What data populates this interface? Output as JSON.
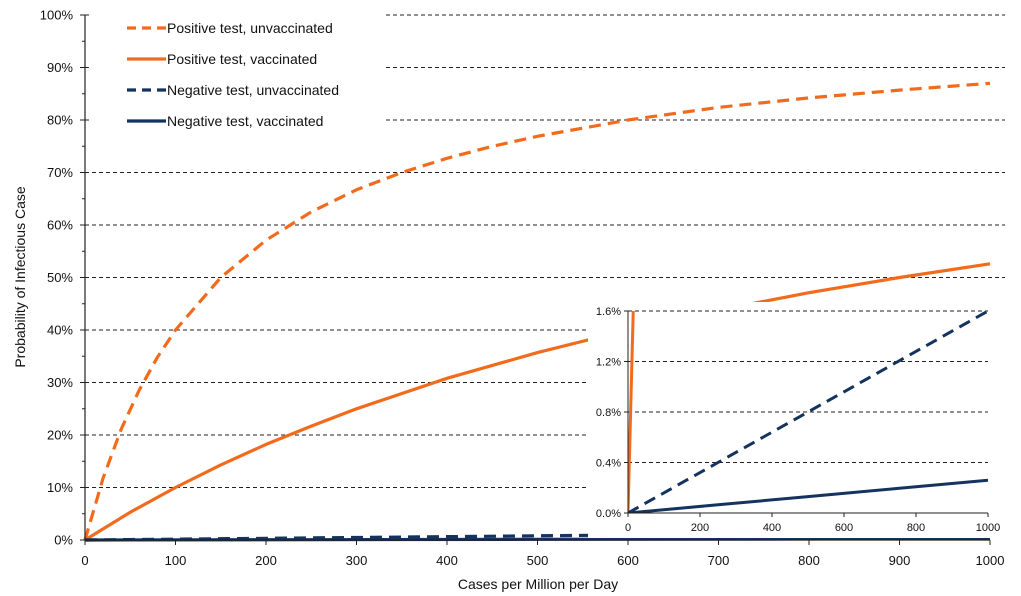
{
  "chart_data": [
    {
      "type": "line",
      "xlabel": "Cases per Million per Day",
      "ylabel": "Probability of Infectious Case",
      "xlim": [
        0,
        1000
      ],
      "ylim": [
        0,
        100
      ],
      "x_ticks": [
        "0",
        "100",
        "200",
        "300",
        "400",
        "500",
        "600",
        "700",
        "800",
        "900",
        "1000"
      ],
      "y_ticks": [
        "0%",
        "10%",
        "20%",
        "30%",
        "40%",
        "50%",
        "60%",
        "70%",
        "80%",
        "90%",
        "100%"
      ],
      "grid": "horizontal dashed",
      "legend_position": "top-left",
      "series": [
        {
          "name": "Positive test, unvaccinated",
          "color": "#F26B1D",
          "style": "dashed",
          "x": [
            0,
            20,
            40,
            60,
            80,
            100,
            150,
            200,
            250,
            300,
            350,
            400,
            450,
            500,
            600,
            700,
            800,
            900,
            1000
          ],
          "y": [
            0,
            11.8,
            21.1,
            28.6,
            34.8,
            40.0,
            50.0,
            57.1,
            62.5,
            66.7,
            70.0,
            72.7,
            75.0,
            76.9,
            80.0,
            82.4,
            84.2,
            85.7,
            87.0
          ]
        },
        {
          "name": "Positive test, vaccinated",
          "color": "#F26B1D",
          "style": "solid",
          "x": [
            0,
            50,
            100,
            150,
            200,
            250,
            300,
            400,
            500,
            600,
            700,
            800,
            900,
            1000
          ],
          "y": [
            0,
            5.3,
            10.0,
            14.3,
            18.2,
            21.7,
            25.0,
            30.8,
            35.7,
            40.0,
            43.8,
            47.1,
            50.0,
            52.6
          ]
        },
        {
          "name": "Negative test, unvaccinated",
          "color": "#14335E",
          "style": "dashed",
          "x": [
            0,
            250,
            500,
            750,
            1000
          ],
          "y": [
            0,
            0.4,
            0.8,
            1.2,
            1.6
          ]
        },
        {
          "name": "Negative test, vaccinated",
          "color": "#14335E",
          "style": "solid",
          "x": [
            0,
            250,
            500,
            750,
            1000
          ],
          "y": [
            0,
            0.065,
            0.13,
            0.195,
            0.26
          ]
        }
      ]
    },
    {
      "type": "line",
      "role": "inset",
      "xlim": [
        0,
        1000
      ],
      "ylim": [
        0,
        1.6
      ],
      "x_ticks": [
        "0",
        "200",
        "400",
        "600",
        "800",
        "1000"
      ],
      "y_ticks": [
        "0.0%",
        "0.4%",
        "0.8%",
        "1.2%",
        "1.6%"
      ],
      "grid": "horizontal dashed",
      "series": [
        {
          "name": "Positive test, vaccinated",
          "color": "#F26B1D",
          "style": "solid",
          "x": [
            0,
            5,
            10,
            15
          ],
          "y": [
            0,
            0.55,
            1.1,
            1.65
          ]
        },
        {
          "name": "Negative test, unvaccinated",
          "color": "#14335E",
          "style": "dashed",
          "x": [
            0,
            250,
            500,
            750,
            1000
          ],
          "y": [
            0,
            0.4,
            0.8,
            1.2,
            1.6
          ]
        },
        {
          "name": "Negative test, vaccinated",
          "color": "#14335E",
          "style": "solid",
          "x": [
            0,
            250,
            500,
            750,
            1000
          ],
          "y": [
            0,
            0.065,
            0.13,
            0.195,
            0.26
          ]
        }
      ]
    }
  ]
}
